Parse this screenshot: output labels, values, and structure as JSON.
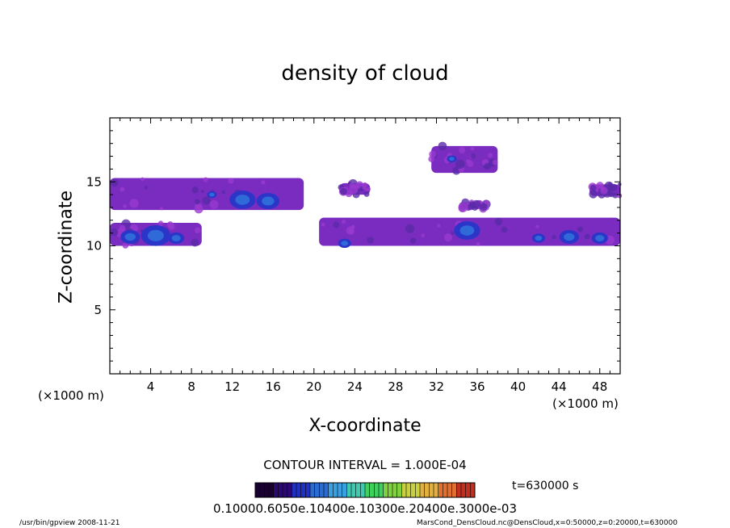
{
  "chart_data": {
    "type": "heatmap",
    "title": "density of cloud",
    "xlabel": "X-coordinate",
    "ylabel": "Z-coordinate",
    "x_unit_left": "(×1000 m)",
    "x_unit_right": "(×1000 m)",
    "xlim": [
      0,
      50
    ],
    "ylim": [
      0,
      20
    ],
    "x_ticks": [
      4,
      8,
      12,
      16,
      20,
      24,
      28,
      32,
      36,
      40,
      44,
      48
    ],
    "y_ticks": [
      5,
      10,
      15
    ],
    "contour_interval": "CONTOUR INTERVAL = 1.000E-04",
    "time": "t=630000 s",
    "colorbar_label": "0.10000.6050e.10400e.10300e.20400e.3000e-03",
    "colorbar_colors": [
      "#1a0030",
      "#2a0a70",
      "#2030c0",
      "#2a6cd0",
      "#3aa0e0",
      "#40c8b0",
      "#40d060",
      "#80d040",
      "#c8d040",
      "#e0b040",
      "#e07030",
      "#c03020"
    ],
    "footer_left": "/usr/bin/gpview   2008-11-21",
    "footer_right": "MarsCond_DensCloud.nc@DensCloud,x=0:50000,z=0:20000,t=630000",
    "regions": [
      {
        "name": "left-lower-band",
        "x": [
          0,
          9
        ],
        "z": [
          10.0,
          11.8
        ],
        "cores": [
          [
            4.5,
            10.8,
            0.9
          ],
          [
            2.0,
            10.7,
            0.6
          ],
          [
            6.5,
            10.6,
            0.5
          ]
        ]
      },
      {
        "name": "left-upper-band",
        "x": [
          0,
          19
        ],
        "z": [
          12.8,
          15.3
        ],
        "cores": [
          [
            13.0,
            13.6,
            0.8
          ],
          [
            15.5,
            13.5,
            0.7
          ],
          [
            10.0,
            14.0,
            0.3
          ]
        ]
      },
      {
        "name": "central-upper-patch",
        "x": [
          22.5,
          25.5
        ],
        "z": [
          14.0,
          14.9
        ],
        "cores": []
      },
      {
        "name": "right-top-patch",
        "x": [
          31.5,
          38.0
        ],
        "z": [
          15.7,
          17.8
        ],
        "cores": [
          [
            33.5,
            16.8,
            0.3
          ]
        ]
      },
      {
        "name": "right-lower-band",
        "x": [
          20.5,
          50
        ],
        "z": [
          10.0,
          12.2
        ],
        "cores": [
          [
            35.0,
            11.2,
            0.8
          ],
          [
            23.0,
            10.2,
            0.4
          ],
          [
            45.0,
            10.7,
            0.6
          ],
          [
            42.0,
            10.6,
            0.4
          ],
          [
            48.0,
            10.6,
            0.5
          ]
        ]
      },
      {
        "name": "right-small-patch",
        "x": [
          34.5,
          37.0
        ],
        "z": [
          12.9,
          13.4
        ],
        "cores": []
      },
      {
        "name": "far-right-upper",
        "x": [
          47.0,
          50
        ],
        "z": [
          13.9,
          14.8
        ],
        "cores": []
      }
    ]
  }
}
